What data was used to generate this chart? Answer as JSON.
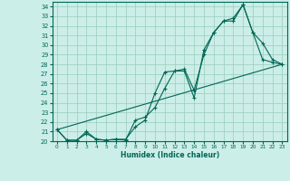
{
  "xlabel": "Humidex (Indice chaleur)",
  "bg_color": "#cceee8",
  "grid_color": "#99ccbb",
  "line_color": "#006655",
  "xlim": [
    -0.5,
    23.5
  ],
  "ylim": [
    20,
    34.5
  ],
  "xticks": [
    0,
    1,
    2,
    3,
    4,
    5,
    6,
    7,
    8,
    9,
    10,
    11,
    12,
    13,
    14,
    15,
    16,
    17,
    18,
    19,
    20,
    21,
    22,
    23
  ],
  "yticks": [
    20,
    21,
    22,
    23,
    24,
    25,
    26,
    27,
    28,
    29,
    30,
    31,
    32,
    33,
    34
  ],
  "line1_x": [
    0,
    1,
    2,
    3,
    4,
    5,
    6,
    7,
    8,
    9,
    10,
    11,
    12,
    13,
    14,
    15,
    16,
    17,
    18,
    19,
    20,
    21,
    22,
    23
  ],
  "line1_y": [
    21.2,
    20.1,
    20.1,
    21.0,
    20.2,
    20.1,
    20.2,
    20.2,
    21.5,
    22.2,
    25.0,
    27.2,
    27.3,
    27.3,
    24.5,
    29.5,
    31.3,
    32.5,
    32.5,
    34.2,
    31.3,
    30.2,
    28.5,
    28.0
  ],
  "line2_x": [
    0,
    1,
    2,
    3,
    4,
    5,
    6,
    7,
    8,
    9,
    10,
    11,
    12,
    13,
    14,
    15,
    16,
    17,
    18,
    19,
    20,
    21,
    22,
    23
  ],
  "line2_y": [
    21.2,
    20.1,
    20.1,
    20.8,
    20.2,
    20.1,
    20.2,
    20.1,
    22.2,
    22.5,
    23.5,
    25.5,
    27.3,
    27.5,
    25.3,
    29.0,
    31.3,
    32.5,
    32.8,
    34.2,
    31.3,
    28.5,
    28.2,
    28.0
  ],
  "line3_x": [
    0,
    23
  ],
  "line3_y": [
    21.2,
    28.0
  ]
}
